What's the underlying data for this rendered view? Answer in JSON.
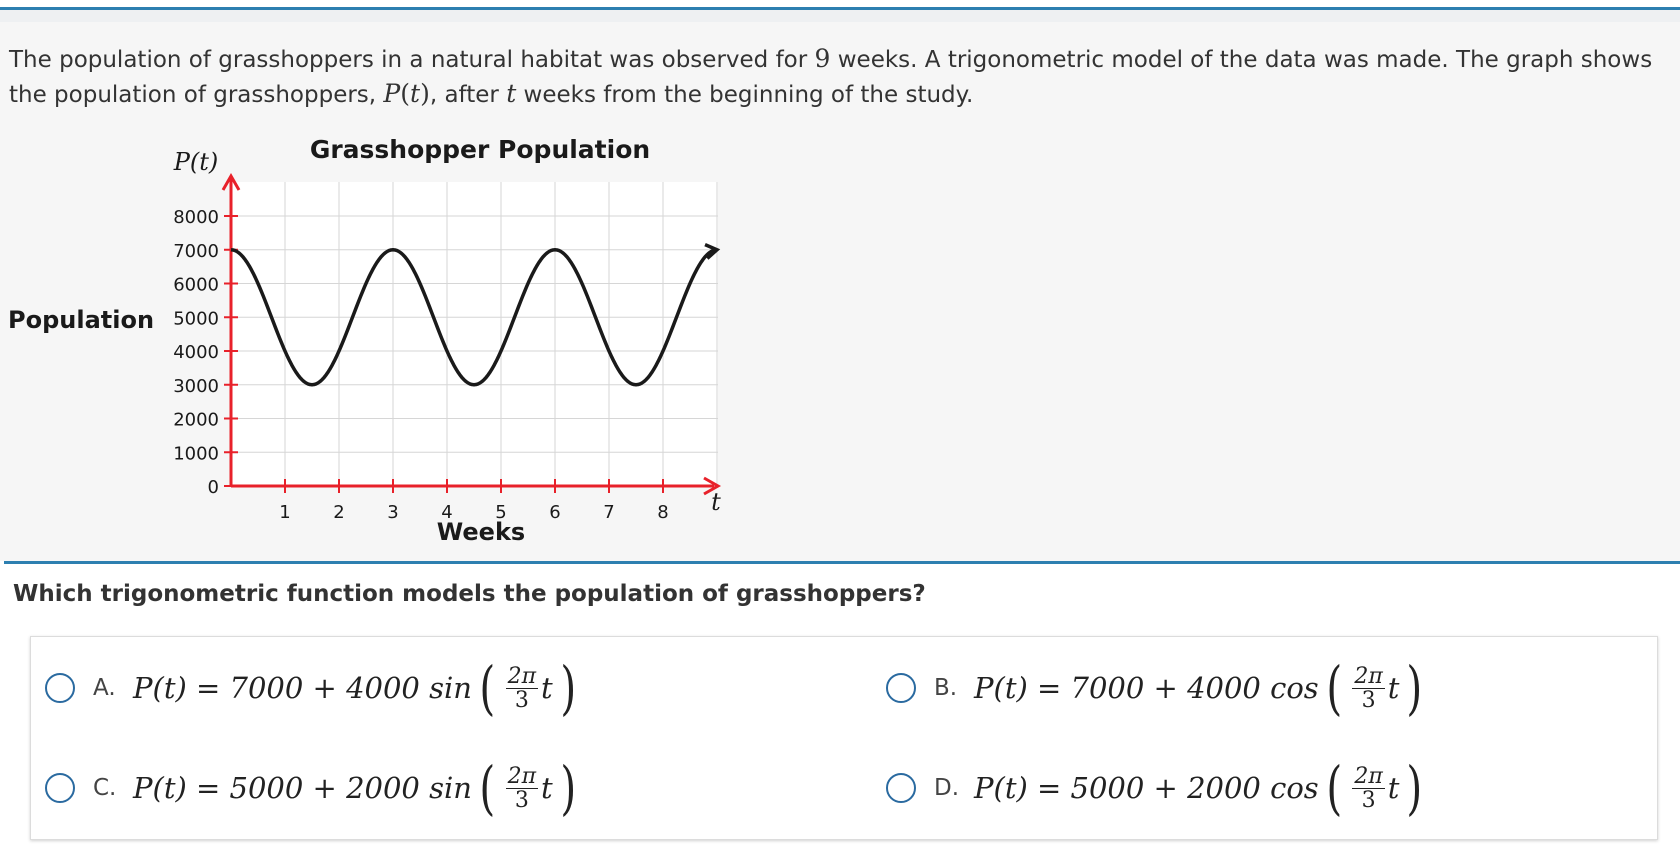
{
  "stem": {
    "p1": "The population of grasshoppers in a natural habitat was observed for ",
    "weeks_count": "9",
    "p2": " weeks. A trigonometric model of the data was made. The graph shows the population of grasshoppers, ",
    "func": "P",
    "open": "(",
    "var": "t",
    "close": ")",
    "p3": ", after ",
    "var2": "t",
    "p4": " weeks from the beginning of the study."
  },
  "chart_data": {
    "type": "line",
    "title": "Grasshopper Population",
    "xlabel": "Weeks",
    "ylabel": "Population",
    "y_axis_symbol": "P(t)",
    "x_axis_symbol": "t",
    "xlim": [
      0,
      9
    ],
    "ylim": [
      0,
      8000
    ],
    "x_ticks": [
      "1",
      "2",
      "3",
      "4",
      "5",
      "6",
      "7",
      "8"
    ],
    "y_ticks": [
      "0",
      "1000",
      "2000",
      "3000",
      "4000",
      "5000",
      "6000",
      "7000",
      "8000"
    ],
    "grid": true,
    "curve": {
      "midline": 5000,
      "amplitude": 2000,
      "period": 3,
      "phase": "cos",
      "x_start": 0,
      "x_end": 9
    },
    "colors": {
      "axis": "#e8212a",
      "curve": "#1a1a1a",
      "grid": "#d6d6d6"
    }
  },
  "question": "Which trigonometric function models the population of grasshoppers?",
  "choices": [
    {
      "letter": "A.",
      "lhs": "P(t) = 7000 + 4000 sin",
      "num": "2π",
      "den": "3",
      "var": "t"
    },
    {
      "letter": "B.",
      "lhs": "P(t) = 7000 + 4000 cos",
      "num": "2π",
      "den": "3",
      "var": "t"
    },
    {
      "letter": "C.",
      "lhs": "P(t) = 5000 + 2000 sin",
      "num": "2π",
      "den": "3",
      "var": "t"
    },
    {
      "letter": "D.",
      "lhs": "P(t) = 5000 + 2000 cos",
      "num": "2π",
      "den": "3",
      "var": "t"
    }
  ]
}
